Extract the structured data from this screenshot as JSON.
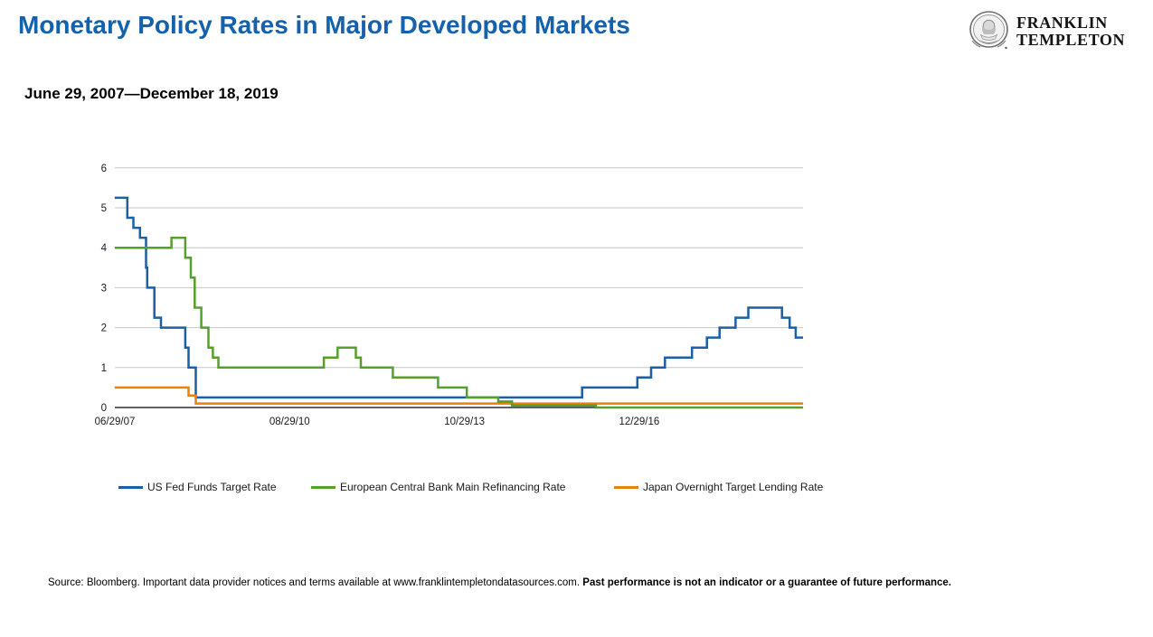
{
  "header": {
    "title": "Monetary Policy Rates in Major Developed Markets",
    "title_color": "#1561ac",
    "subtitle": "June 29, 2007—December 18, 2019"
  },
  "logo": {
    "line1": "FRANKLIN",
    "line2": "TEMPLETON",
    "portrait_icon": "benjamin-franklin-portrait"
  },
  "chart_data": {
    "type": "line",
    "subtype": "step",
    "title": "",
    "xlabel": "",
    "ylabel": "",
    "grid": "horizontal",
    "gridline_color": "#c6c6c6",
    "axis_color": "#000000",
    "legend_position": "bottom",
    "x_axis": {
      "range_decimal_year": [
        2007.494,
        2019.962
      ],
      "tick_labels": [
        "06/29/07",
        "08/29/10",
        "10/29/13",
        "12/29/16"
      ],
      "tick_positions_decimal_year": [
        2007.494,
        2010.66,
        2013.828,
        2016.995
      ]
    },
    "y_axis": {
      "ticks": [
        0,
        1,
        2,
        3,
        4,
        5,
        6
      ],
      "range": [
        0,
        6
      ]
    },
    "draw_order": [
      0,
      2,
      1
    ],
    "series": [
      {
        "name": "US Fed Funds Target Rate",
        "color": "#1b5fa5",
        "step_points": [
          [
            2007.49,
            5.25
          ],
          [
            2007.72,
            4.75
          ],
          [
            2007.83,
            4.5
          ],
          [
            2007.95,
            4.25
          ],
          [
            2008.06,
            3.5
          ],
          [
            2008.08,
            3.0
          ],
          [
            2008.21,
            2.25
          ],
          [
            2008.33,
            2.0
          ],
          [
            2008.77,
            1.5
          ],
          [
            2008.83,
            1.0
          ],
          [
            2008.96,
            0.25
          ],
          [
            2015.96,
            0.5
          ],
          [
            2016.96,
            0.75
          ],
          [
            2017.21,
            1.0
          ],
          [
            2017.46,
            1.25
          ],
          [
            2017.95,
            1.5
          ],
          [
            2018.22,
            1.75
          ],
          [
            2018.45,
            2.0
          ],
          [
            2018.74,
            2.25
          ],
          [
            2018.97,
            2.5
          ],
          [
            2019.58,
            2.25
          ],
          [
            2019.72,
            2.0
          ],
          [
            2019.83,
            1.75
          ]
        ]
      },
      {
        "name": "European Central Bank Main Refinancing Rate",
        "color": "#55a02c",
        "step_points": [
          [
            2007.49,
            4.0
          ],
          [
            2008.52,
            4.25
          ],
          [
            2008.77,
            3.75
          ],
          [
            2008.87,
            3.25
          ],
          [
            2008.94,
            2.5
          ],
          [
            2009.06,
            2.0
          ],
          [
            2009.19,
            1.5
          ],
          [
            2009.27,
            1.25
          ],
          [
            2009.37,
            1.0
          ],
          [
            2011.28,
            1.25
          ],
          [
            2011.53,
            1.5
          ],
          [
            2011.86,
            1.25
          ],
          [
            2011.95,
            1.0
          ],
          [
            2012.53,
            0.75
          ],
          [
            2013.35,
            0.5
          ],
          [
            2013.87,
            0.25
          ],
          [
            2014.44,
            0.15
          ],
          [
            2014.69,
            0.05
          ],
          [
            2016.21,
            0.0
          ]
        ]
      },
      {
        "name": "Japan Overnight Target Lending Rate",
        "color": "#e8820d",
        "step_points": [
          [
            2007.49,
            0.5
          ],
          [
            2008.83,
            0.3
          ],
          [
            2008.96,
            0.1
          ]
        ]
      }
    ]
  },
  "footer": {
    "source_text": "Source: Bloomberg. Important data provider notices and terms available at www.franklintempletondatasources.com.",
    "disclaimer_bold": "Past performance is not an indicator or a guarantee of future performance."
  }
}
